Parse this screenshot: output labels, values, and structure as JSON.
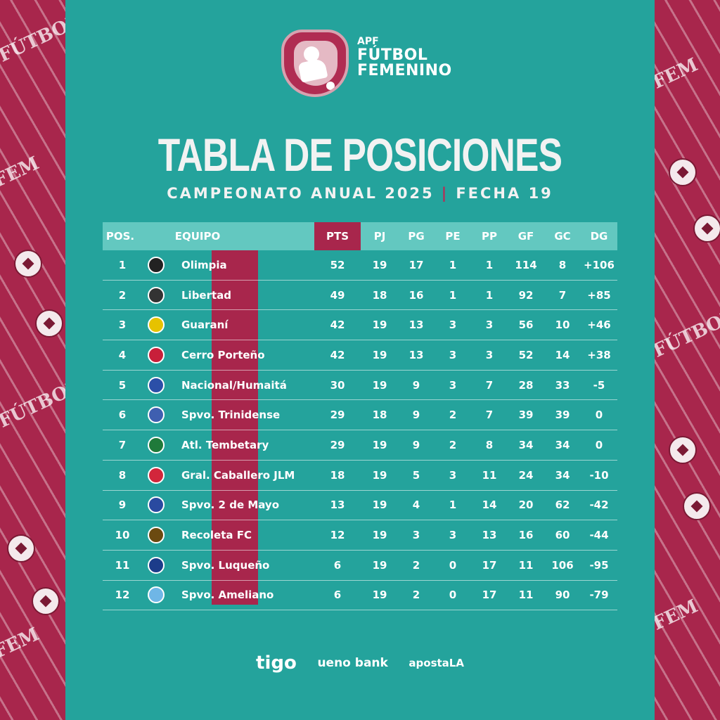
{
  "logo": {
    "line1": "APF",
    "line2": "FÚTBOL",
    "line3": "FEMENINO"
  },
  "title": "TABLA DE POSICIONES",
  "subtitle": {
    "left": "CAMPEONATO ANUAL 2025",
    "separator": "|",
    "right": "FECHA 19"
  },
  "headers": {
    "pos": "POS.",
    "team": "EQUIPO",
    "pts": "PTS",
    "pj": "PJ",
    "pg": "PG",
    "pe": "PE",
    "pp": "PP",
    "gf": "GF",
    "gc": "GC",
    "dg": "DG"
  },
  "rows": [
    {
      "pos": "1",
      "team": "Olimpia",
      "pts": "52",
      "pj": "19",
      "pg": "17",
      "pe": "1",
      "pp": "1",
      "gf": "114",
      "gc": "8",
      "dg": "+106",
      "crest": "#222222"
    },
    {
      "pos": "2",
      "team": "Libertad",
      "pts": "49",
      "pj": "18",
      "pg": "16",
      "pe": "1",
      "pp": "1",
      "gf": "92",
      "gc": "7",
      "dg": "+85",
      "crest": "#333333"
    },
    {
      "pos": "3",
      "team": "Guaraní",
      "pts": "42",
      "pj": "19",
      "pg": "13",
      "pe": "3",
      "pp": "3",
      "gf": "56",
      "gc": "10",
      "dg": "+46",
      "crest": "#e6c200"
    },
    {
      "pos": "4",
      "team": "Cerro Porteño",
      "pts": "42",
      "pj": "19",
      "pg": "13",
      "pe": "3",
      "pp": "3",
      "gf": "52",
      "gc": "14",
      "dg": "+38",
      "crest": "#c81f3a"
    },
    {
      "pos": "5",
      "team": "Nacional/Humaitá",
      "pts": "30",
      "pj": "19",
      "pg": "9",
      "pe": "3",
      "pp": "7",
      "gf": "28",
      "gc": "33",
      "dg": "-5",
      "crest": "#2b4fa8"
    },
    {
      "pos": "6",
      "team": "Spvo. Trinidense",
      "pts": "29",
      "pj": "18",
      "pg": "9",
      "pe": "2",
      "pp": "7",
      "gf": "39",
      "gc": "39",
      "dg": "0",
      "crest": "#3f5fb0"
    },
    {
      "pos": "7",
      "team": "Atl. Tembetary",
      "pts": "29",
      "pj": "19",
      "pg": "9",
      "pe": "2",
      "pp": "8",
      "gf": "34",
      "gc": "34",
      "dg": "0",
      "crest": "#1f7a3a"
    },
    {
      "pos": "8",
      "team": "Gral. Caballero JLM",
      "pts": "18",
      "pj": "19",
      "pg": "5",
      "pe": "3",
      "pp": "11",
      "gf": "24",
      "gc": "34",
      "dg": "-10",
      "crest": "#d2263b"
    },
    {
      "pos": "9",
      "team": "Spvo. 2 de Mayo",
      "pts": "13",
      "pj": "19",
      "pg": "4",
      "pe": "1",
      "pp": "14",
      "gf": "20",
      "gc": "62",
      "dg": "-42",
      "crest": "#2a4aa0"
    },
    {
      "pos": "10",
      "team": "Recoleta FC",
      "pts": "12",
      "pj": "19",
      "pg": "3",
      "pe": "3",
      "pp": "13",
      "gf": "16",
      "gc": "60",
      "dg": "-44",
      "crest": "#6b4a10"
    },
    {
      "pos": "11",
      "team": "Spvo. Luqueño",
      "pts": "6",
      "pj": "19",
      "pg": "2",
      "pe": "0",
      "pp": "17",
      "gf": "11",
      "gc": "106",
      "dg": "-95",
      "crest": "#1c3c8a"
    },
    {
      "pos": "12",
      "team": "Spvo. Ameliano",
      "pts": "6",
      "pj": "19",
      "pg": "2",
      "pe": "0",
      "pp": "17",
      "gf": "11",
      "gc": "90",
      "dg": "-79",
      "crest": "#6fb6e6"
    }
  ],
  "sponsors": {
    "one": "tigo",
    "two": "ueno bank",
    "three": "apostaLA"
  },
  "colors": {
    "panel": "#24a39c",
    "accent": "#a8264c",
    "header": "#63c8c0"
  }
}
